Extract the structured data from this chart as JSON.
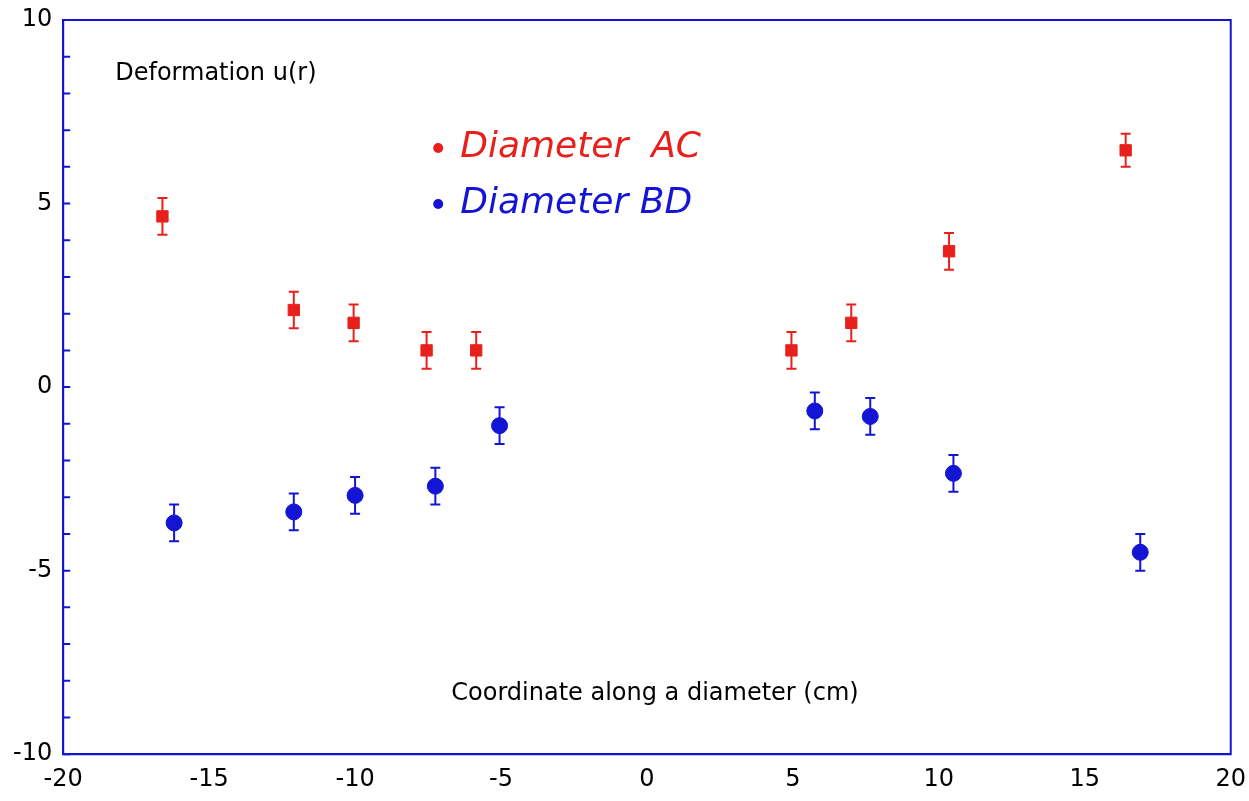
{
  "chart_data": {
    "type": "scatter",
    "xlabel": "Coordinate along a diameter (cm)",
    "ylabel": "Deformation u(r)",
    "xlim": [
      -20,
      20
    ],
    "xticks": [
      -20,
      -15,
      -10,
      -5,
      0,
      5,
      10,
      15,
      20
    ],
    "ylim": [
      -10,
      10
    ],
    "yticks": [
      -10,
      -5,
      0,
      5,
      10
    ],
    "grid": false,
    "legend": "top",
    "series": [
      {
        "name": "Diameter  AC",
        "color": "#e8201c",
        "marker": "square",
        "x": [
          -16.6,
          -12.1,
          -10.05,
          -7.55,
          -5.85,
          4.95,
          7,
          10.35,
          16.4
        ],
        "values": [
          4.65,
          2.1,
          1.75,
          1,
          1,
          1,
          1.75,
          3.7,
          6.45
        ],
        "errors": [
          0.5,
          0.5,
          0.5,
          0.5,
          0.5,
          0.5,
          0.5,
          0.5,
          0.45
        ]
      },
      {
        "name": "Diameter BD",
        "color": "#1414d4",
        "marker": "circle",
        "x": [
          -16.2,
          -12.1,
          -10,
          -7.25,
          -5.05,
          5.75,
          7.65,
          10.5,
          16.9
        ],
        "values": [
          -3.7,
          -3.4,
          -2.95,
          -2.7,
          -1.05,
          -0.65,
          -0.8,
          -2.35,
          -4.5
        ],
        "errors": [
          0.5,
          0.5,
          0.5,
          0.5,
          0.5,
          0.5,
          0.5,
          0.5,
          0.5
        ]
      }
    ]
  }
}
